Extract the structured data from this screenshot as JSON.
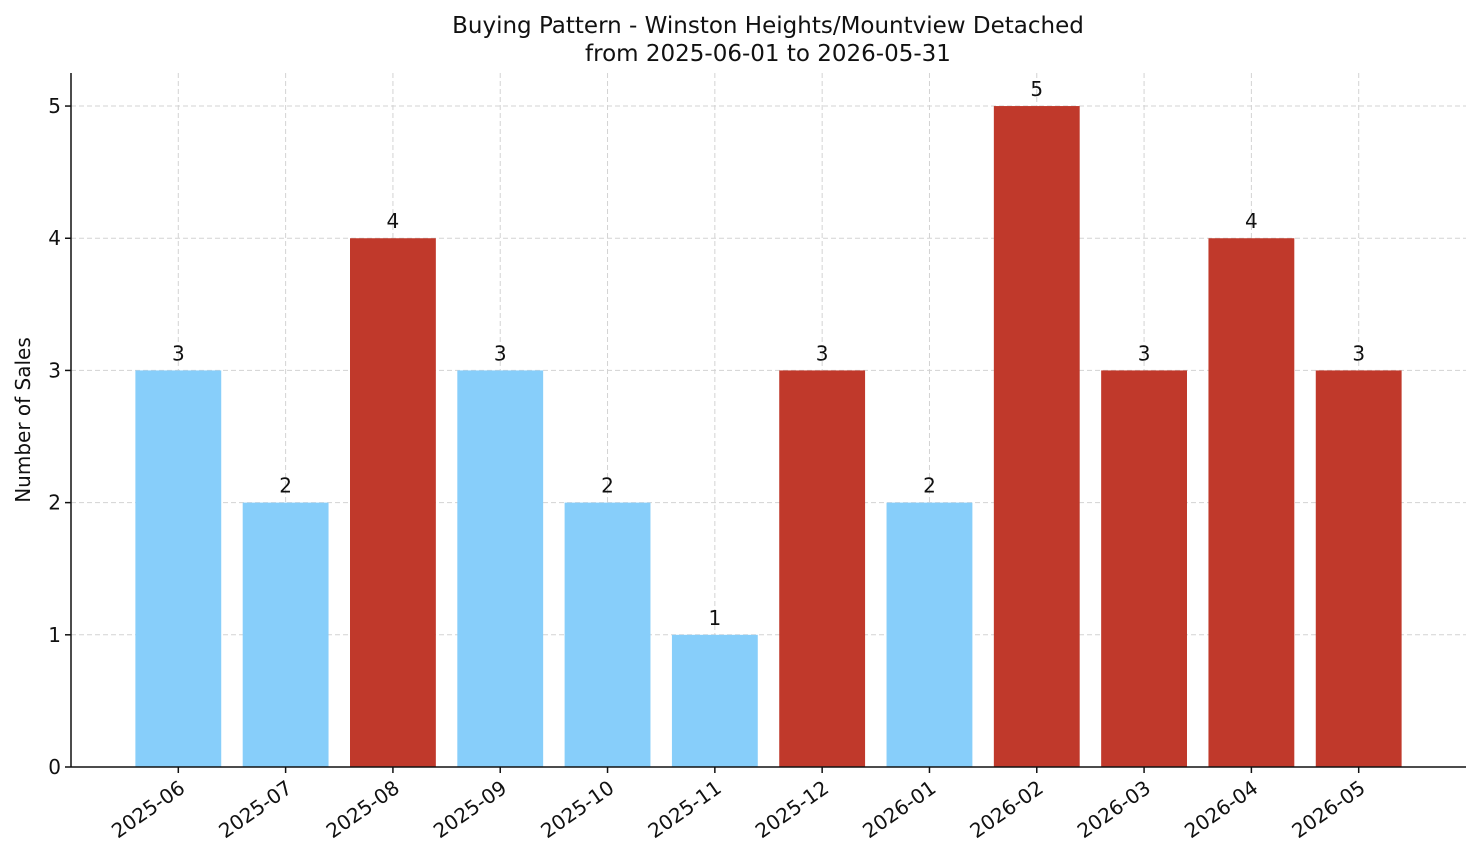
{
  "chart_data": {
    "type": "bar",
    "title": "Buying Pattern - Winston Heights/Mountview Detached",
    "subtitle": "from 2025-06-01 to 2026-05-31",
    "y_label": "Number of Sales",
    "categories": [
      "2025-06",
      "2025-07",
      "2025-08",
      "2025-09",
      "2025-10",
      "2025-11",
      "2025-12",
      "2026-01",
      "2026-02",
      "2026-03",
      "2026-04",
      "2026-05"
    ],
    "values": [
      3,
      2,
      4,
      3,
      2,
      1,
      3,
      2,
      5,
      3,
      4,
      3
    ],
    "colors": [
      "#87cefa",
      "#87cefa",
      "#c0392b",
      "#87cefa",
      "#87cefa",
      "#87cefa",
      "#c0392b",
      "#87cefa",
      "#c0392b",
      "#c0392b",
      "#c0392b",
      "#c0392b"
    ],
    "ylim": [
      0,
      5.25
    ],
    "yticks": [
      0,
      1,
      2,
      3,
      4,
      5
    ],
    "grid": true
  }
}
